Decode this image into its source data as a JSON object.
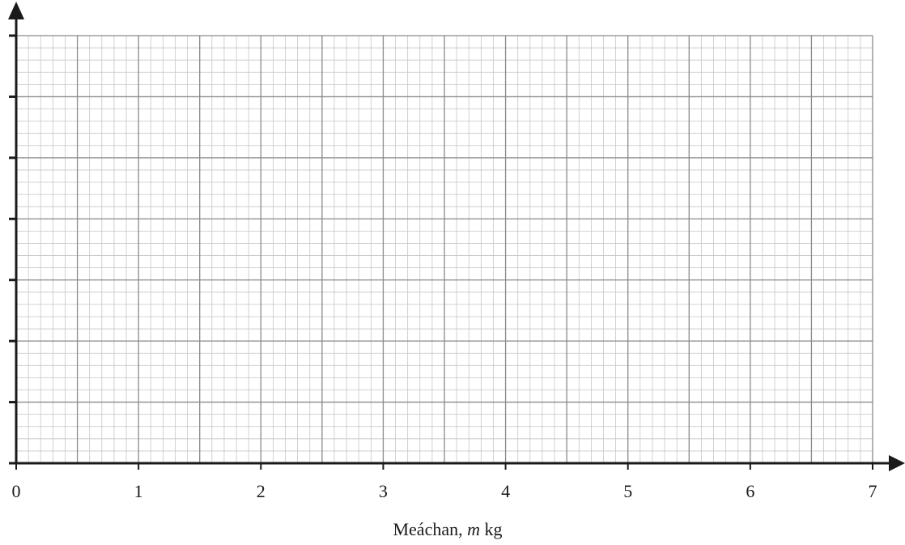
{
  "chart_data": {
    "type": "scatter",
    "title": "",
    "xlabel_parts": [
      "Meáchan, ",
      "m",
      " kg"
    ],
    "ylabel": "",
    "xlim": [
      0,
      7
    ],
    "x_ticks": [
      "0",
      "1",
      "2",
      "3",
      "4",
      "5",
      "6",
      "7"
    ],
    "x_major_step": 0.5,
    "x_minor_per_major": 5,
    "y_ticks": [
      "",
      "",
      "",
      "",
      "",
      "",
      "",
      ""
    ],
    "y_major_divisions": 7,
    "y_minor_per_major": 5,
    "grid": true,
    "series": []
  },
  "colors": {
    "axis": "#1a1a1a",
    "grid_major": "#8a8a8a",
    "grid_minor": "#c6c6c6"
  }
}
